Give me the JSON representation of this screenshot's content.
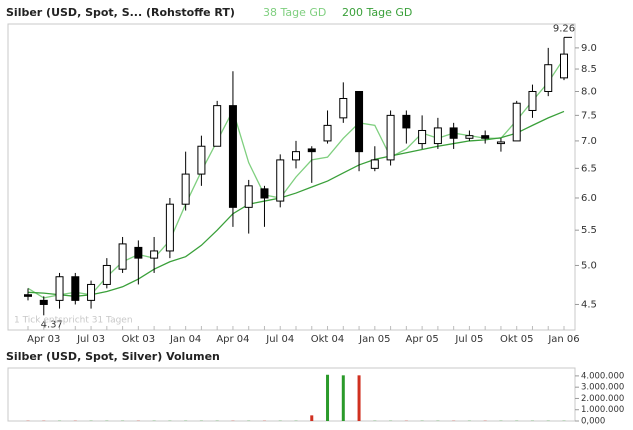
{
  "chart_data": [
    {
      "type": "candlestick",
      "title": "Silber (USD, Spot, S... (Rohstoffe RT)",
      "categories": [
        null,
        "Apr 03",
        null,
        null,
        "Jul 03",
        null,
        null,
        "Okt 03",
        null,
        null,
        "Jan 04",
        null,
        null,
        "Apr 04",
        null,
        null,
        "Jul 04",
        null,
        null,
        "Okt 04",
        null,
        null,
        "Jan 05",
        null,
        null,
        "Apr 05",
        null,
        null,
        "Jul 05",
        null,
        null,
        "Okt 05",
        null,
        null,
        "Jan 06"
      ],
      "open": [
        4.62,
        4.55,
        4.55,
        4.85,
        4.55,
        4.75,
        4.95,
        5.25,
        5.1,
        5.2,
        5.9,
        6.4,
        6.9,
        7.7,
        5.85,
        6.15,
        5.95,
        6.65,
        6.85,
        7.0,
        7.45,
        8.0,
        6.5,
        6.65,
        7.5,
        6.95,
        6.95,
        7.25,
        7.05,
        7.1,
        6.95,
        7.0,
        7.6,
        8.0,
        8.3
      ],
      "high": [
        4.7,
        4.6,
        4.9,
        4.9,
        4.8,
        5.1,
        5.4,
        5.35,
        5.4,
        6.0,
        6.8,
        7.1,
        7.8,
        8.45,
        6.3,
        6.2,
        6.75,
        7.0,
        6.9,
        7.6,
        8.2,
        8.0,
        6.9,
        7.6,
        7.6,
        7.5,
        7.45,
        7.35,
        7.2,
        7.2,
        7.05,
        7.8,
        8.15,
        9.0,
        9.26
      ],
      "low": [
        4.55,
        4.37,
        4.45,
        4.5,
        4.45,
        4.7,
        4.9,
        4.75,
        4.9,
        5.1,
        5.8,
        6.2,
        6.9,
        5.55,
        5.45,
        5.55,
        5.85,
        6.5,
        6.25,
        6.95,
        7.35,
        6.45,
        6.45,
        6.55,
        6.95,
        6.85,
        6.85,
        6.85,
        7.0,
        6.95,
        6.8,
        7.0,
        7.45,
        7.9,
        8.25
      ],
      "close": [
        4.6,
        4.5,
        4.85,
        4.55,
        4.75,
        5.0,
        5.3,
        5.1,
        5.2,
        5.9,
        6.4,
        6.9,
        7.7,
        5.85,
        6.2,
        6.0,
        6.65,
        6.8,
        6.8,
        7.3,
        7.85,
        6.8,
        6.65,
        7.5,
        7.25,
        7.2,
        7.25,
        7.05,
        7.1,
        7.05,
        6.98,
        7.75,
        8.0,
        8.6,
        8.85
      ],
      "series": [
        {
          "name": "38 Tage GD",
          "color": "#7fcf7f",
          "values": [
            4.7,
            4.58,
            4.62,
            4.65,
            4.62,
            4.85,
            5.05,
            5.15,
            5.1,
            5.35,
            5.9,
            6.45,
            7.0,
            7.6,
            6.6,
            6.05,
            6.0,
            6.35,
            6.65,
            6.7,
            7.05,
            7.35,
            7.3,
            6.7,
            6.85,
            7.15,
            7.05,
            7.15,
            7.1,
            7.05,
            7.05,
            7.4,
            7.8,
            8.2,
            8.75
          ]
        },
        {
          "name": "200 Tage GD",
          "color": "#3aa03a",
          "values": [
            4.65,
            4.64,
            4.62,
            4.6,
            4.62,
            4.66,
            4.72,
            4.82,
            4.95,
            5.05,
            5.12,
            5.28,
            5.5,
            5.75,
            5.9,
            5.95,
            6.0,
            6.08,
            6.18,
            6.28,
            6.42,
            6.56,
            6.66,
            6.72,
            6.78,
            6.84,
            6.9,
            6.95,
            7.0,
            7.02,
            7.06,
            7.15,
            7.3,
            7.45,
            7.58
          ]
        }
      ],
      "up_color": "#ffffff",
      "down_color": "#000000",
      "ylim": [
        4.2,
        9.6
      ],
      "log_scale": true,
      "yticks": [
        4.5,
        {
          "value": 5,
          "label": "5.0"
        },
        5.5,
        {
          "value": 6,
          "label": "6.0"
        },
        6.5,
        {
          "value": 7,
          "label": "7.0"
        },
        7.5,
        {
          "value": 8,
          "label": "8.0"
        },
        8.5,
        {
          "value": 9,
          "label": "9.0"
        }
      ],
      "annotations": [
        "4.37",
        "9.26",
        "1 Tick entspricht 31 Tagen"
      ]
    },
    {
      "type": "bar",
      "title": "Silber (USD, Spot, Silver) Volumen",
      "values": [
        20000,
        20000,
        20000,
        20000,
        20000,
        20000,
        20000,
        20000,
        20000,
        20000,
        20000,
        20000,
        20000,
        20000,
        20000,
        20000,
        20000,
        20000,
        500000,
        4100000,
        4050000,
        4050000,
        20000,
        20000,
        20000,
        20000,
        20000,
        20000,
        20000,
        20000,
        20000,
        20000,
        20000,
        20000,
        20000
      ],
      "up_color": "#2a9a2a",
      "down_color": "#d03020",
      "ylim": [
        0,
        4700000
      ],
      "yticks": [
        {
          "value": 0,
          "label": "0,000"
        },
        {
          "value": 1000000,
          "label": "1.000.000"
        },
        {
          "value": 2000000,
          "label": "2.000.000"
        },
        {
          "value": 3000000,
          "label": "3.000.000"
        },
        {
          "value": 4000000,
          "label": "4.000.000"
        }
      ]
    }
  ]
}
